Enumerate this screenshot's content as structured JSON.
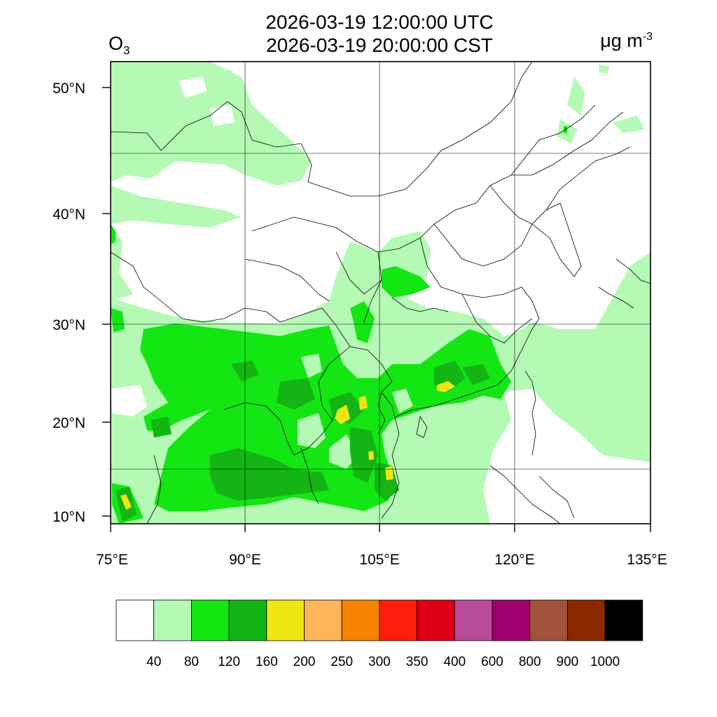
{
  "header": {
    "title_utc": "2026-03-19 12:00:00 UTC",
    "title_cst": "2026-03-19 20:00:00 CST",
    "species_main": "O",
    "species_sub": "3",
    "units_main": "μg m",
    "units_sup": "-3"
  },
  "map": {
    "lon_range": [
      75,
      135
    ],
    "lat_range": [
      9.5,
      52
    ],
    "lon_ticks": [
      "75°E",
      "90°E",
      "105°E",
      "120°E",
      "135°E"
    ],
    "lat_ticks": [
      "50°N",
      "40°N",
      "30°N",
      "20°N",
      "10°N"
    ],
    "background_color": "#ffffff"
  },
  "colorbar": {
    "levels": [
      "40",
      "80",
      "120",
      "160",
      "200",
      "250",
      "300",
      "350",
      "400",
      "600",
      "800",
      "900",
      "1000"
    ],
    "colors": [
      "#ffffff",
      "#b4fab4",
      "#14e614",
      "#14b414",
      "#f0e614",
      "#ffb45a",
      "#f58200",
      "#ff1e0a",
      "#dc0014",
      "#b94b9b",
      "#a0006e",
      "#a0523c",
      "#8c2800",
      "#000000"
    ]
  }
}
